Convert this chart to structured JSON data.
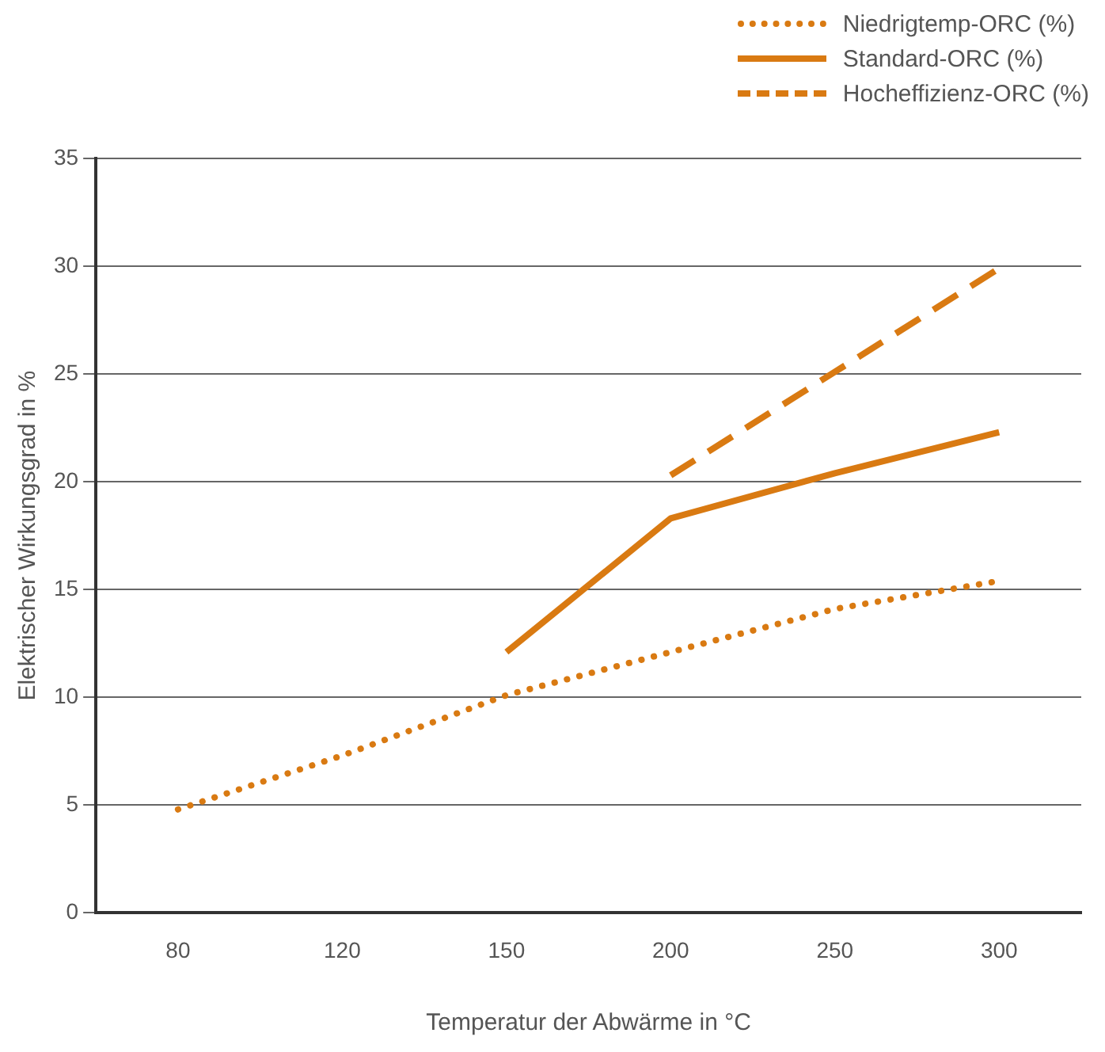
{
  "chart_data": {
    "type": "line",
    "xlabel": "Temperatur der Abwärme in °C",
    "ylabel": "Elektrischer Wirkungsgrad in %",
    "categories": [
      "80",
      "120",
      "150",
      "200",
      "250",
      "300"
    ],
    "series": [
      {
        "name": "Niedrigtemp-ORC (%)",
        "color": "#d97a12",
        "line_style": "dotted",
        "values": [
          4.8,
          7.3,
          10.1,
          12.1,
          14.1,
          15.4
        ]
      },
      {
        "name": "Standard-ORC (%)",
        "color": "#d97a12",
        "line_style": "solid",
        "values": [
          null,
          null,
          12.1,
          18.3,
          20.4,
          22.3
        ]
      },
      {
        "name": "Hocheffizienz-ORC (%)",
        "color": "#d97a12",
        "line_style": "dashed",
        "values": [
          null,
          null,
          null,
          20.3,
          25.1,
          29.9
        ]
      }
    ],
    "ylim": [
      0,
      35
    ],
    "yticks": [
      0,
      5,
      10,
      15,
      20,
      25,
      30,
      35
    ],
    "grid": "y",
    "legend": "top right",
    "marker": "none"
  }
}
